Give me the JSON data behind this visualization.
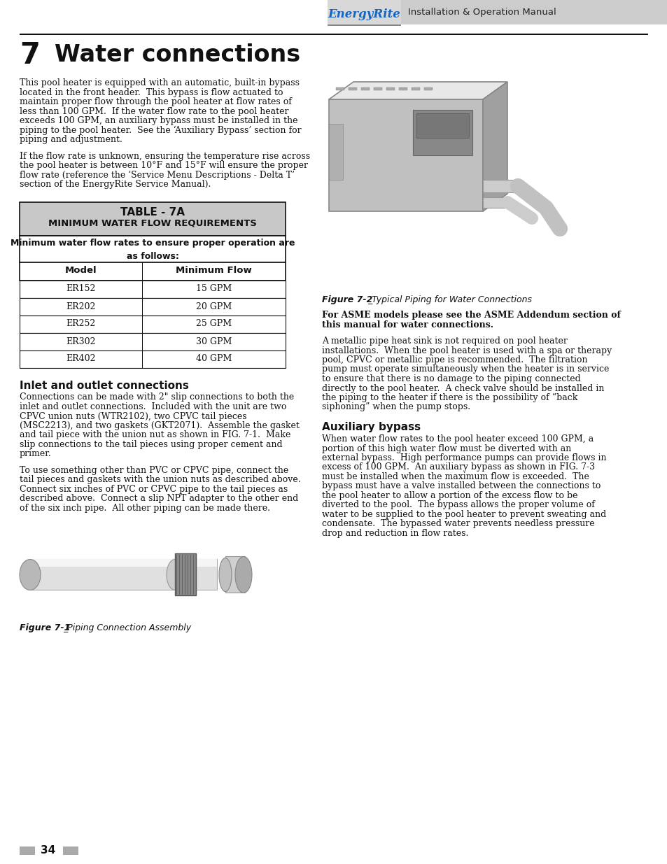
{
  "page_title_num": "7",
  "page_title": "Water connections",
  "header_text": "Installation & Operation Manual",
  "p1": "This pool heater is equipped with an automatic, built-in bypass\nlocated in the front header.  This bypass is flow actuated to\nmaintain proper flow through the pool heater at flow rates of\nless than 100 GPM.  If the water flow rate to the pool heater\nexceeds 100 GPM, an auxiliary bypass must be installed in the\npiping to the pool heater.  See the ‘Auxiliary Bypass’ section for\npiping and adjustment.",
  "p2": "If the flow rate is unknown, ensuring the temperature rise across\nthe pool heater is between 10°F and 15°F will ensure the proper\nflow rate (reference the Service Menu Descriptions - Delta T\nsection of the EnergyRite Service Manual).",
  "table_title1": "TABLE - 7A",
  "table_title2": "MINIMUM WATER FLOW REQUIREMENTS",
  "table_subtitle": "Minimum water flow rates to ensure proper operation are\nas follows:",
  "table_col_headers": [
    "Model",
    "Minimum Flow"
  ],
  "table_rows": [
    [
      "ER152",
      "15 GPM"
    ],
    [
      "ER202",
      "20 GPM"
    ],
    [
      "ER252",
      "25 GPM"
    ],
    [
      "ER302",
      "30 GPM"
    ],
    [
      "ER402",
      "40 GPM"
    ]
  ],
  "inlet_heading": "Inlet and outlet connections",
  "inlet_p1": "Connections can be made with 2\" slip connections to both the\ninlet and outlet connections.  Included with the unit are two\nCPVC union nuts (WTR2102), two CPVC tail pieces\n(MSC2213), and two gaskets (GKT2071).  Assemble the gasket\nand tail piece with the union nut as shown in FIG. 7-1.  Make\nslip connections to the tail pieces using proper cement and\nprimer.",
  "inlet_p2": "To use something other than PVC or CPVC pipe, connect the\ntail pieces and gaskets with the union nuts as described above.\nConnect six inches of PVC or CPVC pipe to the tail pieces as\ndescribed above.  Connect a slip NPT adapter to the other end\nof the six inch pipe.  All other piping can be made there.",
  "fig1_caption": "Figure 7-1_Piping Connection Assembly",
  "fig2_caption": "Figure 7-2_Typical Piping for Water Connections",
  "asme_text": "For ASME models please see the ASME Addendum section of\nthis manual for water connections.",
  "metallic_text": "A metallic pipe heat sink is not required on pool heater\ninstallations.  When the pool heater is used with a spa or therapy\npool, CPVC or metallic pipe is recommended.  The filtration\npump must operate simultaneously when the heater is in service\nto ensure that there is no damage to the piping connected\ndirectly to the pool heater.  A check valve should be installed in\nthe piping to the heater if there is the possibility of “back\nsiphoning” when the pump stops.",
  "aux_heading": "Auxiliary bypass",
  "aux_text": "When water flow rates to the pool heater exceed 100 GPM, a\nportion of this high water flow must be diverted with an\nexternal bypass.  High performance pumps can provide flows in\nexcess of 100 GPM.  An auxiliary bypass as shown in FIG. 7-3\nmust be installed when the maximum flow is exceeded.  The\nbypass must have a valve installed between the connections to\nthe pool heater to allow a portion of the excess flow to be\ndiverted to the pool.  The bypass allows the proper volume of\nwater to be supplied to the pool heater to prevent sweating and\ncondensate.  The bypassed water prevents needless pressure\ndrop and reduction in flow rates.",
  "page_number": "34",
  "bg_color": "#ffffff",
  "header_bg": "#cccccc",
  "table_header_bg": "#c8c8c8",
  "logo_color": "#1565c0",
  "logo_subtext_color": "#cc0000"
}
